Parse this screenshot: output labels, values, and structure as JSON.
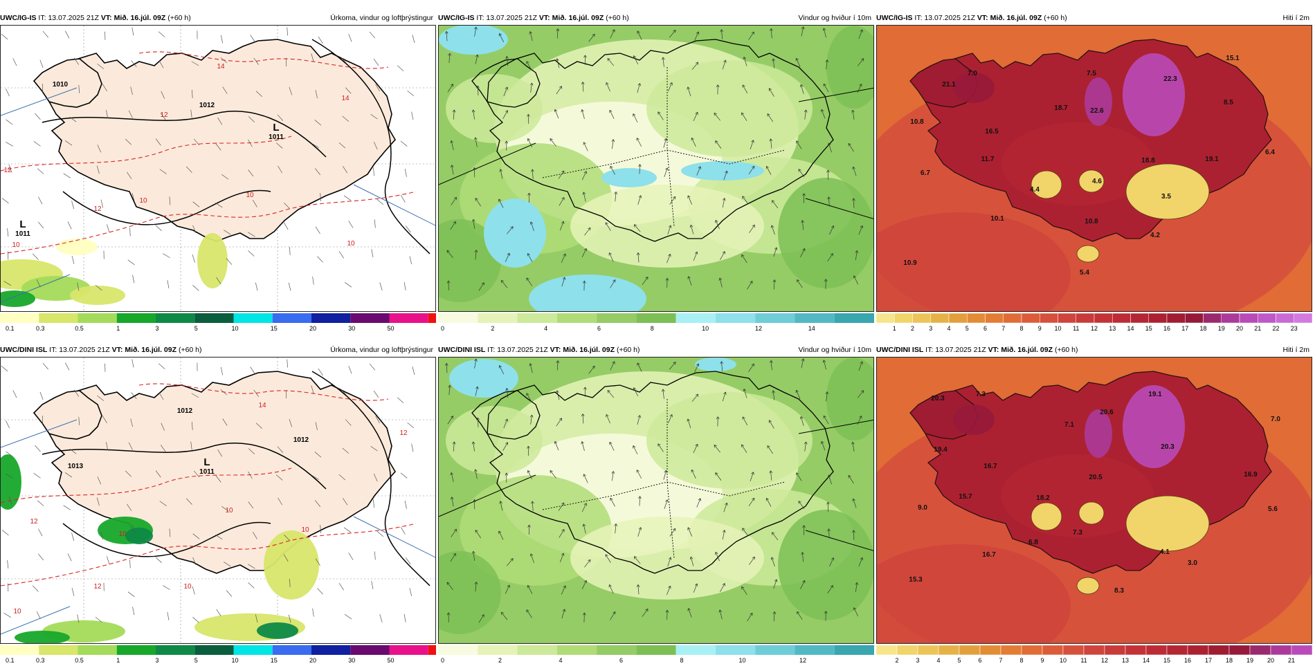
{
  "rows": [
    {
      "model": "UWC/IG-IS",
      "panels": [
        {
          "product": "Úrkoma, vindur og loftþrýstingur",
          "kind": "precip",
          "map_labels": [
            {
              "text": "1010",
              "type": "iso"
            },
            {
              "text": "L",
              "type": "low"
            },
            {
              "text": "1011",
              "type": "iso"
            },
            {
              "text": "L",
              "type": "low"
            },
            {
              "text": "1011",
              "type": "iso"
            },
            {
              "text": "1012",
              "type": "iso"
            },
            {
              "text": "12",
              "type": "temp"
            },
            {
              "text": "12",
              "type": "temp"
            },
            {
              "text": "12",
              "type": "temp"
            },
            {
              "text": "14",
              "type": "temp"
            },
            {
              "text": "14",
              "type": "temp"
            },
            {
              "text": "10",
              "type": "temp"
            },
            {
              "text": "10",
              "type": "temp"
            },
            {
              "text": "10",
              "type": "temp"
            },
            {
              "text": "10",
              "type": "temp"
            }
          ],
          "scale": [
            "0.1",
            "0.3",
            "0.5",
            "1",
            "3",
            "5",
            "10",
            "15",
            "20",
            "30",
            "50"
          ]
        },
        {
          "product": "Vindur og hviður í 10m",
          "kind": "wind",
          "map_labels": [],
          "scale": [
            "0",
            "2",
            "4",
            "6",
            "8",
            "10",
            "12",
            "14"
          ]
        },
        {
          "product": "Hiti í 2m",
          "kind": "temp",
          "map_labels": [
            {
              "text": "21.1"
            },
            {
              "text": "7.0"
            },
            {
              "text": "7.5"
            },
            {
              "text": "22.3"
            },
            {
              "text": "15.1"
            },
            {
              "text": "18.7"
            },
            {
              "text": "22.6"
            },
            {
              "text": "8.5"
            },
            {
              "text": "10.8"
            },
            {
              "text": "16.5"
            },
            {
              "text": "18.8"
            },
            {
              "text": "19.1"
            },
            {
              "text": "6.4"
            },
            {
              "text": "6.7"
            },
            {
              "text": "11.7"
            },
            {
              "text": "4.4"
            },
            {
              "text": "4.6"
            },
            {
              "text": "3.5"
            },
            {
              "text": "10.1"
            },
            {
              "text": "10.8"
            },
            {
              "text": "4.2"
            },
            {
              "text": "10.9"
            },
            {
              "text": "5.4"
            }
          ],
          "scale": [
            "1",
            "2",
            "3",
            "4",
            "5",
            "6",
            "7",
            "8",
            "9",
            "10",
            "11",
            "12",
            "13",
            "14",
            "15",
            "16",
            "17",
            "18",
            "19",
            "20",
            "21",
            "22",
            "23"
          ]
        }
      ]
    },
    {
      "model": "UWC/DINI ISL",
      "panels": [
        {
          "product": "Úrkoma, vindur og loftþrýstingur",
          "kind": "precip",
          "map_labels": [
            {
              "text": "L",
              "type": "low"
            },
            {
              "text": "1011",
              "type": "iso"
            },
            {
              "text": "1012",
              "type": "iso"
            },
            {
              "text": "1012",
              "type": "iso"
            },
            {
              "text": "1013",
              "type": "iso"
            },
            {
              "text": "14",
              "type": "temp"
            },
            {
              "text": "12",
              "type": "temp"
            },
            {
              "text": "12",
              "type": "temp"
            },
            {
              "text": "12",
              "type": "temp"
            },
            {
              "text": "10",
              "type": "temp"
            },
            {
              "text": "10",
              "type": "temp"
            },
            {
              "text": "10",
              "type": "temp"
            },
            {
              "text": "10",
              "type": "temp"
            },
            {
              "text": "10",
              "type": "temp"
            }
          ],
          "scale": [
            "0.1",
            "0.3",
            "0.5",
            "1",
            "3",
            "5",
            "10",
            "15",
            "20",
            "30",
            "50"
          ]
        },
        {
          "product": "Vindur og hviður í 10m",
          "kind": "wind",
          "map_labels": [],
          "scale": [
            "0",
            "2",
            "4",
            "6",
            "8",
            "10",
            "12"
          ]
        },
        {
          "product": "Hiti í 2m",
          "kind": "temp",
          "map_labels": [
            {
              "text": "20.3"
            },
            {
              "text": "7.3"
            },
            {
              "text": "19.1"
            },
            {
              "text": "20.6"
            },
            {
              "text": "7.1"
            },
            {
              "text": "7.0"
            },
            {
              "text": "19.4"
            },
            {
              "text": "16.7"
            },
            {
              "text": "20.3"
            },
            {
              "text": "20.5"
            },
            {
              "text": "16.9"
            },
            {
              "text": "15.7"
            },
            {
              "text": "9.0"
            },
            {
              "text": "18.2"
            },
            {
              "text": "5.6"
            },
            {
              "text": "6.8"
            },
            {
              "text": "7.3"
            },
            {
              "text": "16.7"
            },
            {
              "text": "4.1"
            },
            {
              "text": "3.0"
            },
            {
              "text": "15.3"
            },
            {
              "text": "8.3"
            }
          ],
          "scale": [
            "2",
            "3",
            "4",
            "5",
            "6",
            "7",
            "8",
            "9",
            "10",
            "11",
            "12",
            "13",
            "14",
            "15",
            "16",
            "17",
            "18",
            "19",
            "20",
            "21"
          ]
        }
      ]
    }
  ],
  "it_label": "IT:",
  "it_time": "13.07.2025 21Z",
  "vt_label": "VT:",
  "vt_time": "Mið. 16.júl. 09Z",
  "lead": "(+60 h)",
  "colors": {
    "precip_scale": [
      "#ffffc0",
      "#d8e66a",
      "#a4db5a",
      "#17a82a",
      "#0e8a46",
      "#0a5e3e",
      "#00e5e5",
      "#3a6cf0",
      "#1020a0",
      "#6a0a70",
      "#e8118a",
      "#f01010"
    ],
    "wind_scale": [
      "#f8fbe0",
      "#e6f3b8",
      "#cde99a",
      "#b0dc78",
      "#95cc66",
      "#7dbf55",
      "#a9f0f4",
      "#8ee0ea",
      "#6fcdd8",
      "#52b9c4",
      "#3aa6b0"
    ],
    "temp_scale": [
      "#f6e58a",
      "#f1d46a",
      "#ecc458",
      "#e6b248",
      "#e39f3c",
      "#e38c36",
      "#e37c34",
      "#e16c36",
      "#dc5c3a",
      "#d6503c",
      "#cf443c",
      "#c93a3a",
      "#c43238",
      "#bd2b36",
      "#b52634",
      "#ac2131",
      "#a01c32",
      "#97193a",
      "#9a2a6e",
      "#ab3a9a",
      "#b94ab8",
      "#bf58c8",
      "#c96ad6",
      "#d27ae0"
    ]
  }
}
